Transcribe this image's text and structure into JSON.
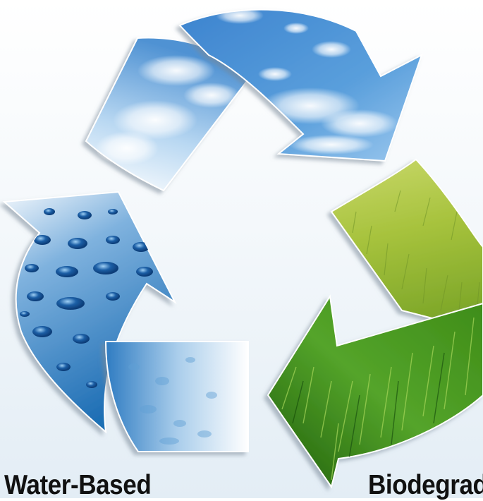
{
  "labels": {
    "left": "Water-Based",
    "right": "Biodegrad"
  },
  "palette": {
    "sky": "#3f86cf",
    "sky_light": "#e8f2fb",
    "water": "#2e7cc0",
    "water_light": "#e6f0f8",
    "grass_light": "#b7cc45",
    "grass_dark": "#2e7a12",
    "background": "#eef4f9",
    "text": "#111111"
  },
  "segments": [
    {
      "name": "sky-arrow",
      "texture": "sky"
    },
    {
      "name": "grass-arrow",
      "texture": "grass"
    },
    {
      "name": "water-arrow",
      "texture": "water droplets"
    }
  ]
}
